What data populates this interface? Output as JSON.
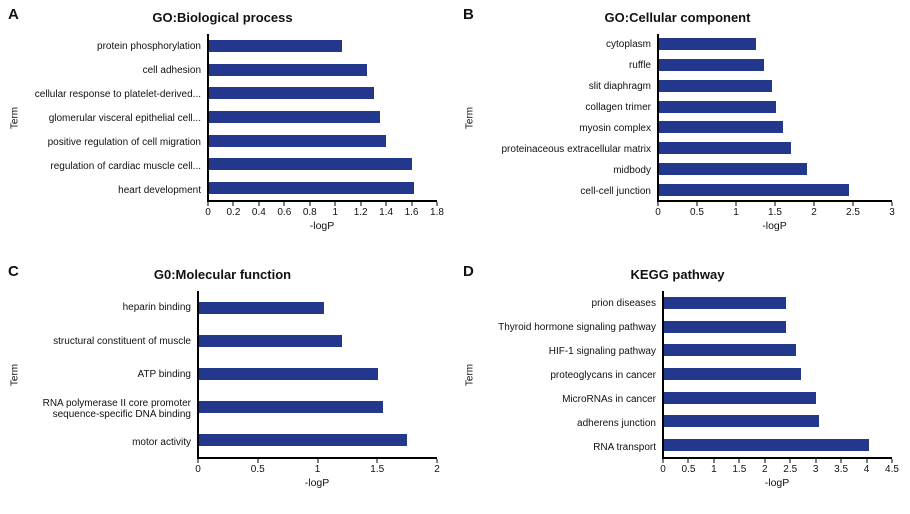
{
  "colors": {
    "bar": "#23378c",
    "axis": "#000000",
    "background": "#ffffff"
  },
  "chart_data": [
    {
      "type": "bar",
      "orientation": "horizontal",
      "panel": "A",
      "title": "GO:Biological process",
      "categories": [
        "protein phosphorylation",
        "cell adhesion",
        "cellular response to platelet-derived...",
        "glomerular visceral epithelial cell...",
        "positive regulation of cell migration",
        "regulation of cardiac muscle cell...",
        "heart development"
      ],
      "values": [
        1.05,
        1.25,
        1.3,
        1.35,
        1.4,
        1.6,
        1.62
      ],
      "xlabel": "-logP",
      "ylabel": "Term",
      "xlim": [
        0,
        1.8
      ],
      "xticks": [
        0,
        0.2,
        0.4,
        0.6,
        0.8,
        1,
        1.2,
        1.4,
        1.6,
        1.8
      ],
      "grid": false,
      "legend": false
    },
    {
      "type": "bar",
      "orientation": "horizontal",
      "panel": "B",
      "title": "GO:Cellular component",
      "categories": [
        "cytoplasm",
        "ruffle",
        "slit diaphragm",
        "collagen trimer",
        "myosin complex",
        "proteinaceous extracellular matrix",
        "midbody",
        "cell-cell junction"
      ],
      "values": [
        1.25,
        1.35,
        1.45,
        1.5,
        1.6,
        1.7,
        1.9,
        2.45
      ],
      "xlabel": "-logP",
      "ylabel": "Term",
      "xlim": [
        0,
        3
      ],
      "xticks": [
        0,
        0.5,
        1,
        1.5,
        2,
        2.5,
        3
      ],
      "grid": false,
      "legend": false
    },
    {
      "type": "bar",
      "orientation": "horizontal",
      "panel": "C",
      "title": "G0:Molecular function",
      "categories": [
        "heparin binding",
        "structural constituent of muscle",
        "ATP binding",
        "RNA polymerase II core promoter sequence-specific DNA binding",
        "motor activity"
      ],
      "values": [
        1.05,
        1.2,
        1.5,
        1.55,
        1.75
      ],
      "xlabel": "-logP",
      "ylabel": "Term",
      "xlim": [
        0,
        2
      ],
      "xticks": [
        0,
        0.5,
        1,
        1.5,
        2
      ],
      "grid": false,
      "legend": false
    },
    {
      "type": "bar",
      "orientation": "horizontal",
      "panel": "D",
      "title": "KEGG pathway",
      "categories": [
        "prion diseases",
        "Thyroid hormone signaling pathway",
        "HIF-1 signaling pathway",
        "proteoglycans in cancer",
        "MicroRNAs in cancer",
        "adherens junction",
        "RNA transport"
      ],
      "values": [
        2.4,
        2.4,
        2.6,
        2.7,
        3.0,
        3.05,
        4.05
      ],
      "xlabel": "-logP",
      "ylabel": "Term",
      "xlim": [
        0,
        4.5
      ],
      "xticks": [
        0,
        0.5,
        1,
        1.5,
        2,
        2.5,
        3,
        3.5,
        4,
        4.5
      ],
      "grid": false,
      "legend": false
    }
  ]
}
